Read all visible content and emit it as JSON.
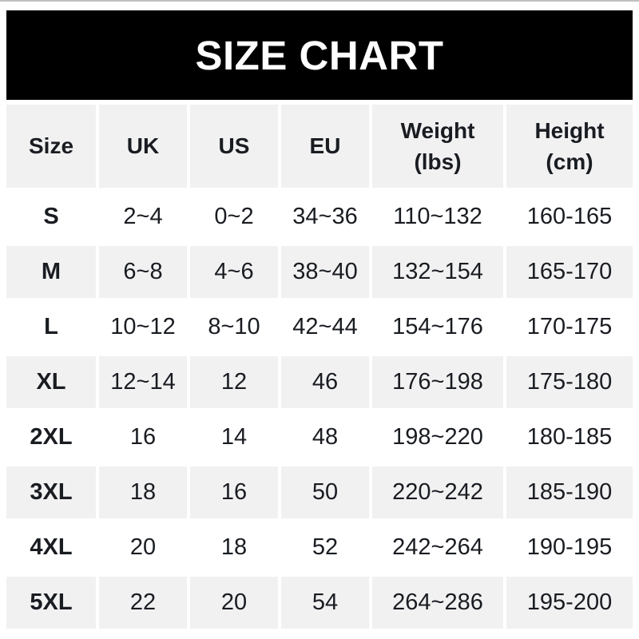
{
  "banner": {
    "title": "SIZE CHART",
    "bg_color": "#000000",
    "text_color": "#ffffff"
  },
  "colors": {
    "row_alt_bg": "#f1f1f2",
    "row_bg": "#ffffff",
    "text": "#191c21"
  },
  "chart_data": {
    "type": "table",
    "title": "SIZE CHART",
    "columns": [
      "Size",
      "UK",
      "US",
      "EU",
      "Weight\n(lbs)",
      "Height\n(cm)"
    ],
    "rows": [
      [
        "S",
        "2~4",
        "0~2",
        "34~36",
        "110~132",
        "160-165"
      ],
      [
        "M",
        "6~8",
        "4~6",
        "38~40",
        "132~154",
        "165-170"
      ],
      [
        "L",
        "10~12",
        "8~10",
        "42~44",
        "154~176",
        "170-175"
      ],
      [
        "XL",
        "12~14",
        "12",
        "46",
        "176~198",
        "175-180"
      ],
      [
        "2XL",
        "16",
        "14",
        "48",
        "198~220",
        "180-185"
      ],
      [
        "3XL",
        "18",
        "16",
        "50",
        "220~242",
        "185-190"
      ],
      [
        "4XL",
        "20",
        "18",
        "52",
        "242~264",
        "190-195"
      ],
      [
        "5XL",
        "22",
        "20",
        "54",
        "264~286",
        "195-200"
      ]
    ]
  }
}
